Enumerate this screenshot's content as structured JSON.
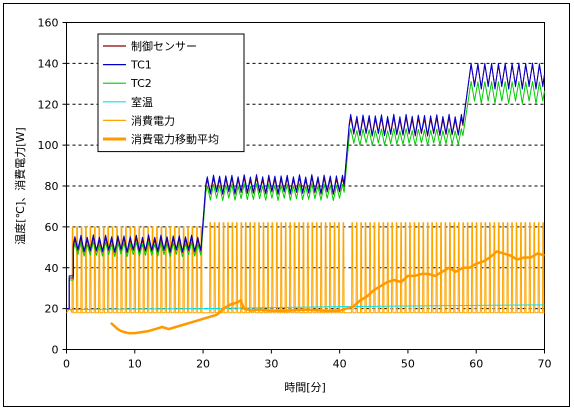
{
  "chart_data": {
    "type": "line",
    "xlabel": "時間[分]",
    "ylabel": "温度[℃]、消費電力[W]",
    "xlim": [
      0,
      70
    ],
    "ylim": [
      0,
      160
    ],
    "xticks": [
      0,
      10,
      20,
      30,
      40,
      50,
      60,
      70
    ],
    "yticks": [
      0,
      20,
      40,
      60,
      80,
      100,
      120,
      140,
      160
    ],
    "grid": "horizontal dashed",
    "legend_position": "top-left",
    "series": [
      {
        "name": "制御センサー",
        "color": "#8b0000",
        "style": "oscillating",
        "segments": [
          {
            "x_start": 0,
            "x_end": 0.4,
            "level": 20,
            "amplitude": 0,
            "period": 1
          },
          {
            "x_start": 0.4,
            "x_end": 1.0,
            "level": 35,
            "amplitude": 0,
            "period": 1
          },
          {
            "x_start": 1.0,
            "x_end": 19.8,
            "level": 51,
            "amplitude": 3,
            "period": 0.9
          },
          {
            "x_start": 20.4,
            "x_end": 40.7,
            "level": 80,
            "amplitude": 3.5,
            "period": 0.9
          },
          {
            "x_start": 41.4,
            "x_end": 58.2,
            "level": 109,
            "amplitude": 4,
            "period": 0.9
          },
          {
            "x_start": 59.0,
            "x_end": 70.0,
            "level": 134,
            "amplitude": 5,
            "period": 1.0
          }
        ]
      },
      {
        "name": "TC1",
        "color": "#0000cd",
        "style": "oscillating",
        "segments": [
          {
            "x_start": 0,
            "x_end": 0.4,
            "level": 20,
            "amplitude": 0,
            "period": 1
          },
          {
            "x_start": 0.4,
            "x_end": 1.0,
            "level": 36,
            "amplitude": 0,
            "period": 1
          },
          {
            "x_start": 1.0,
            "x_end": 19.8,
            "level": 52,
            "amplitude": 3.5,
            "period": 0.9
          },
          {
            "x_start": 20.4,
            "x_end": 40.7,
            "level": 81,
            "amplitude": 4,
            "period": 0.9
          },
          {
            "x_start": 41.4,
            "x_end": 58.2,
            "level": 110,
            "amplitude": 4.5,
            "period": 0.9
          },
          {
            "x_start": 59.0,
            "x_end": 70.0,
            "level": 134,
            "amplitude": 6,
            "period": 1.0
          }
        ]
      },
      {
        "name": "TC2",
        "color": "#00cc00",
        "style": "oscillating",
        "segments": [
          {
            "x_start": 0,
            "x_end": 0.4,
            "level": 20,
            "amplitude": 0,
            "period": 1
          },
          {
            "x_start": 0.4,
            "x_end": 1.0,
            "level": 34,
            "amplitude": 0,
            "period": 1
          },
          {
            "x_start": 1.0,
            "x_end": 19.8,
            "level": 49,
            "amplitude": 3,
            "period": 0.9
          },
          {
            "x_start": 20.4,
            "x_end": 40.7,
            "level": 77,
            "amplitude": 3.5,
            "period": 0.9
          },
          {
            "x_start": 41.4,
            "x_end": 58.2,
            "level": 104,
            "amplitude": 3.5,
            "period": 0.9
          },
          {
            "x_start": 59.0,
            "x_end": 70.0,
            "level": 126,
            "amplitude": 5,
            "period": 1.0
          }
        ]
      },
      {
        "name": "室温",
        "color": "#00e5ee",
        "style": "line",
        "x": [
          0,
          10,
          20,
          30,
          40,
          50,
          60,
          70
        ],
        "y": [
          19.5,
          19.8,
          20,
          20.5,
          21,
          21.3,
          21.6,
          21.8
        ]
      },
      {
        "name": "消費電力",
        "color": "#ffa500",
        "style": "pulses",
        "low": 18,
        "high_by_range": [
          {
            "x_start": 0,
            "x_end": 20,
            "high": 60
          },
          {
            "x_start": 20,
            "x_end": 70,
            "high": 62
          }
        ],
        "pulse_period": 0.65,
        "gaps": [
          [
            20.0,
            20.6
          ],
          [
            41.0,
            41.6
          ]
        ]
      },
      {
        "name": "消費電力移動平均",
        "color": "#ff9900",
        "style": "thick",
        "x": [
          6.5,
          7.5,
          8,
          9,
          10,
          11,
          12,
          13,
          14,
          15,
          16,
          17,
          18,
          19,
          20,
          21,
          22,
          23,
          24,
          25,
          25.5,
          26,
          27,
          28,
          30,
          32,
          35,
          38,
          40,
          41,
          42,
          43,
          44,
          45,
          46,
          47,
          48,
          49,
          50,
          51,
          52,
          53,
          54,
          55,
          56,
          57,
          58,
          59,
          60,
          61,
          62,
          63,
          64,
          65,
          66,
          67,
          68,
          69,
          70
        ],
        "y": [
          13,
          10,
          9,
          8,
          8,
          8.5,
          9,
          10,
          11,
          10,
          11,
          12,
          13,
          14,
          15,
          16,
          17,
          20,
          22,
          23,
          24,
          20,
          19,
          19.5,
          19,
          19,
          19.5,
          19,
          19,
          20,
          21,
          24,
          26,
          29,
          31,
          33,
          34,
          33,
          36,
          36,
          37,
          37,
          36,
          38,
          40,
          38,
          40,
          40,
          42,
          43,
          45,
          48,
          47,
          46,
          44,
          45,
          45,
          47,
          46
        ]
      }
    ]
  }
}
